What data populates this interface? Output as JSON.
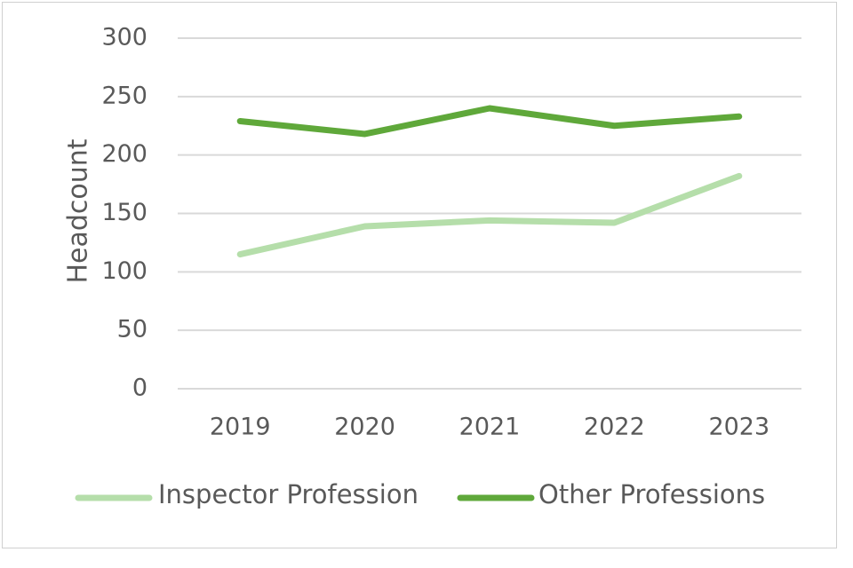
{
  "chart_data": {
    "type": "line",
    "title": "",
    "xlabel": "",
    "ylabel": "Headcount",
    "categories": [
      "2019",
      "2020",
      "2021",
      "2022",
      "2023"
    ],
    "ylim": [
      0,
      300
    ],
    "yticks": [
      0,
      50,
      100,
      150,
      200,
      250,
      300
    ],
    "grid": true,
    "legend": "bottom",
    "series": [
      {
        "name": "Inspector Profession",
        "color": "#b5deaa",
        "values": [
          115,
          139,
          144,
          142,
          182
        ]
      },
      {
        "name": "Other Professions",
        "color": "#5fa83a",
        "values": [
          229,
          218,
          240,
          225,
          233
        ]
      }
    ]
  }
}
